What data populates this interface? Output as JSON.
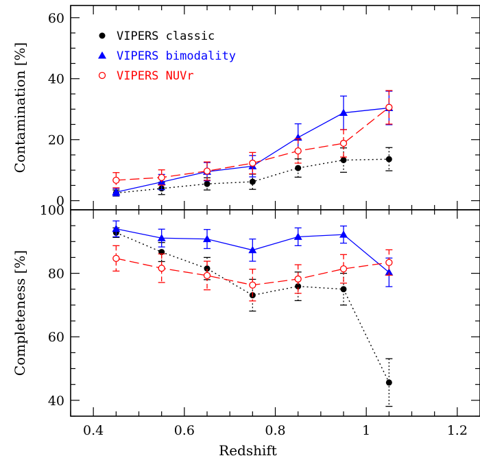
{
  "chart_data": [
    {
      "type": "line",
      "panel": "top",
      "xlabel": "",
      "ylabel": "Contamination [%]",
      "xlim": [
        0.35,
        1.25
      ],
      "ylim": [
        -3,
        64
      ],
      "xticks": [],
      "yticks": [
        0,
        20,
        40,
        60
      ],
      "legend": {
        "placement": "top-left"
      },
      "series": [
        {
          "name": "VIPERS classic",
          "color": "#000000",
          "marker": "filled-circle",
          "linestyle": "dotted",
          "x": [
            0.45,
            0.55,
            0.65,
            0.75,
            0.85,
            0.95,
            1.05
          ],
          "y": [
            2.5,
            4.0,
            5.5,
            6.2,
            10.7,
            13.3,
            13.6
          ],
          "err": [
            1.0,
            2.0,
            2.0,
            2.5,
            3.0,
            4.0,
            3.8
          ]
        },
        {
          "name": "VIPERS bimodality",
          "color": "#0000ff",
          "marker": "filled-triangle",
          "linestyle": "solid",
          "x": [
            0.45,
            0.55,
            0.65,
            0.75,
            0.85,
            0.95,
            1.05
          ],
          "y": [
            2.8,
            6.1,
            9.5,
            11.3,
            20.7,
            28.8,
            30.4
          ],
          "err": [
            1.2,
            2.5,
            3.0,
            3.5,
            4.5,
            5.5,
            5.5
          ]
        },
        {
          "name": "VIPERS NUVr",
          "color": "#ff0000",
          "marker": "open-circle",
          "linestyle": "dashed",
          "x": [
            0.45,
            0.55,
            0.65,
            0.75,
            0.85,
            0.95,
            1.05
          ],
          "y": [
            6.7,
            7.6,
            9.7,
            12.3,
            16.3,
            18.8,
            30.6
          ],
          "err": [
            2.5,
            2.5,
            3.0,
            3.5,
            4.0,
            4.5,
            5.5
          ]
        }
      ]
    },
    {
      "type": "line",
      "panel": "bottom",
      "xlabel": "Redshift",
      "ylabel": "Completeness [%]",
      "xlim": [
        0.35,
        1.25
      ],
      "ylim": [
        35,
        100
      ],
      "xticks": [
        0.4,
        0.6,
        0.8,
        1,
        1.2
      ],
      "yticks": [
        40,
        60,
        80,
        100
      ],
      "series": [
        {
          "name": "VIPERS classic",
          "color": "#000000",
          "marker": "filled-circle",
          "linestyle": "dotted",
          "x": [
            0.45,
            0.55,
            0.65,
            0.75,
            0.85,
            0.95,
            1.05
          ],
          "y": [
            92.8,
            86.7,
            81.5,
            73.1,
            75.9,
            75.0,
            45.6
          ],
          "err": [
            1.5,
            3.0,
            3.5,
            5.0,
            4.5,
            5.0,
            7.5
          ]
        },
        {
          "name": "VIPERS bimodality",
          "color": "#0000ff",
          "marker": "filled-triangle",
          "linestyle": "solid",
          "x": [
            0.45,
            0.55,
            0.65,
            0.75,
            0.85,
            0.95,
            1.05
          ],
          "y": [
            94.0,
            91.1,
            90.8,
            87.3,
            91.5,
            92.2,
            80.3
          ],
          "err": [
            2.5,
            2.8,
            3.0,
            3.5,
            2.8,
            2.7,
            4.5
          ]
        },
        {
          "name": "VIPERS NUVr",
          "color": "#ff0000",
          "marker": "open-circle",
          "linestyle": "dashed",
          "x": [
            0.45,
            0.55,
            0.65,
            0.75,
            0.85,
            0.95,
            1.05
          ],
          "y": [
            84.7,
            81.6,
            79.3,
            76.3,
            78.2,
            81.4,
            83.4
          ],
          "err": [
            4.0,
            4.5,
            4.5,
            5.0,
            4.5,
            4.5,
            4.0
          ]
        }
      ]
    }
  ]
}
